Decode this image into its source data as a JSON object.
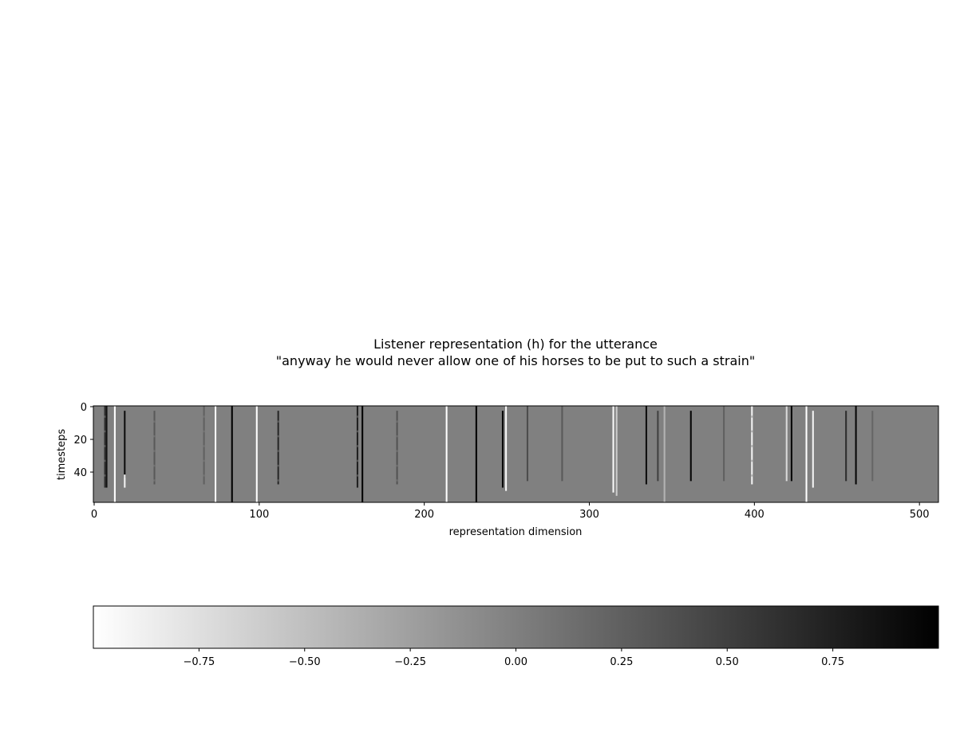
{
  "chart_data": {
    "type": "heatmap",
    "title_line1": "Listener representation (h) for the utterance",
    "title_line2": "\"anyway he would never allow one of his horses to be put to such a strain\"",
    "xlabel": "representation dimension",
    "ylabel": "timesteps",
    "xlim": [
      0,
      512
    ],
    "ylim": [
      0,
      59
    ],
    "x_ticks": [
      0,
      100,
      200,
      300,
      400,
      500
    ],
    "y_ticks": [
      0,
      20,
      40
    ],
    "colormap": "gray_r",
    "value_range": [
      -1,
      1
    ],
    "background_value": 0.0,
    "colorbar": {
      "ticks": [
        -0.75,
        -0.5,
        -0.25,
        0.0,
        0.25,
        0.5,
        0.75
      ],
      "tick_labels": [
        "−0.75",
        "−0.50",
        "−0.25",
        "0.00",
        "0.25",
        "0.50",
        "0.75"
      ],
      "orientation": "horizontal",
      "placement": "bottom"
    },
    "columns": [
      {
        "dim": 7,
        "value": 0.6,
        "t_start": 0,
        "t_end": 50,
        "dashed": true
      },
      {
        "dim": 8,
        "value": 0.85,
        "t_start": 0,
        "t_end": 50,
        "dashed": false
      },
      {
        "dim": 13,
        "value": -1.0,
        "t_start": 0,
        "t_end": 59,
        "dashed": false
      },
      {
        "dim": 19,
        "value": 0.9,
        "t_start": 3,
        "t_end": 44,
        "dashed": false
      },
      {
        "dim": 19,
        "value": -0.9,
        "t_start": 42,
        "t_end": 50,
        "dashed": false
      },
      {
        "dim": 37,
        "value": 0.3,
        "t_start": 3,
        "t_end": 48,
        "dashed": true
      },
      {
        "dim": 67,
        "value": 0.25,
        "t_start": 0,
        "t_end": 48,
        "dashed": true
      },
      {
        "dim": 74,
        "value": -0.95,
        "t_start": 0,
        "t_end": 59,
        "dashed": false
      },
      {
        "dim": 84,
        "value": 1.0,
        "t_start": 0,
        "t_end": 59,
        "dashed": false
      },
      {
        "dim": 99,
        "value": -1.0,
        "t_start": 0,
        "t_end": 59,
        "dashed": false
      },
      {
        "dim": 112,
        "value": 0.7,
        "t_start": 3,
        "t_end": 48,
        "dashed": true
      },
      {
        "dim": 160,
        "value": 0.75,
        "t_start": 0,
        "t_end": 50,
        "dashed": true
      },
      {
        "dim": 163,
        "value": 1.0,
        "t_start": 0,
        "t_end": 59,
        "dashed": false
      },
      {
        "dim": 184,
        "value": 0.35,
        "t_start": 3,
        "t_end": 48,
        "dashed": true
      },
      {
        "dim": 214,
        "value": -1.0,
        "t_start": 0,
        "t_end": 59,
        "dashed": false
      },
      {
        "dim": 232,
        "value": 1.0,
        "t_start": 0,
        "t_end": 59,
        "dashed": false
      },
      {
        "dim": 248,
        "value": 0.95,
        "t_start": 3,
        "t_end": 50,
        "dashed": false
      },
      {
        "dim": 250,
        "value": -0.95,
        "t_start": 0,
        "t_end": 52,
        "dashed": false
      },
      {
        "dim": 263,
        "value": 0.4,
        "t_start": 0,
        "t_end": 46,
        "dashed": false
      },
      {
        "dim": 284,
        "value": 0.3,
        "t_start": 0,
        "t_end": 46,
        "dashed": false
      },
      {
        "dim": 315,
        "value": -0.95,
        "t_start": 0,
        "t_end": 53,
        "dashed": false
      },
      {
        "dim": 317,
        "value": -0.6,
        "t_start": 0,
        "t_end": 55,
        "dashed": false
      },
      {
        "dim": 335,
        "value": 0.9,
        "t_start": 0,
        "t_end": 48,
        "dashed": false
      },
      {
        "dim": 342,
        "value": 0.5,
        "t_start": 3,
        "t_end": 46,
        "dashed": false
      },
      {
        "dim": 346,
        "value": -0.4,
        "t_start": 0,
        "t_end": 59,
        "dashed": false
      },
      {
        "dim": 362,
        "value": 0.95,
        "t_start": 3,
        "t_end": 46,
        "dashed": false
      },
      {
        "dim": 382,
        "value": 0.25,
        "t_start": 0,
        "t_end": 46,
        "dashed": false
      },
      {
        "dim": 399,
        "value": -0.9,
        "t_start": 0,
        "t_end": 48,
        "dashed": true
      },
      {
        "dim": 420,
        "value": -0.7,
        "t_start": 0,
        "t_end": 46,
        "dashed": false
      },
      {
        "dim": 423,
        "value": 0.95,
        "t_start": 0,
        "t_end": 46,
        "dashed": false
      },
      {
        "dim": 432,
        "value": -1.0,
        "t_start": 0,
        "t_end": 59,
        "dashed": false
      },
      {
        "dim": 436,
        "value": -0.9,
        "t_start": 3,
        "t_end": 50,
        "dashed": false
      },
      {
        "dim": 456,
        "value": 0.65,
        "t_start": 3,
        "t_end": 46,
        "dashed": false
      },
      {
        "dim": 462,
        "value": 0.95,
        "t_start": 0,
        "t_end": 48,
        "dashed": false
      },
      {
        "dim": 472,
        "value": 0.2,
        "t_start": 3,
        "t_end": 46,
        "dashed": false
      }
    ]
  }
}
